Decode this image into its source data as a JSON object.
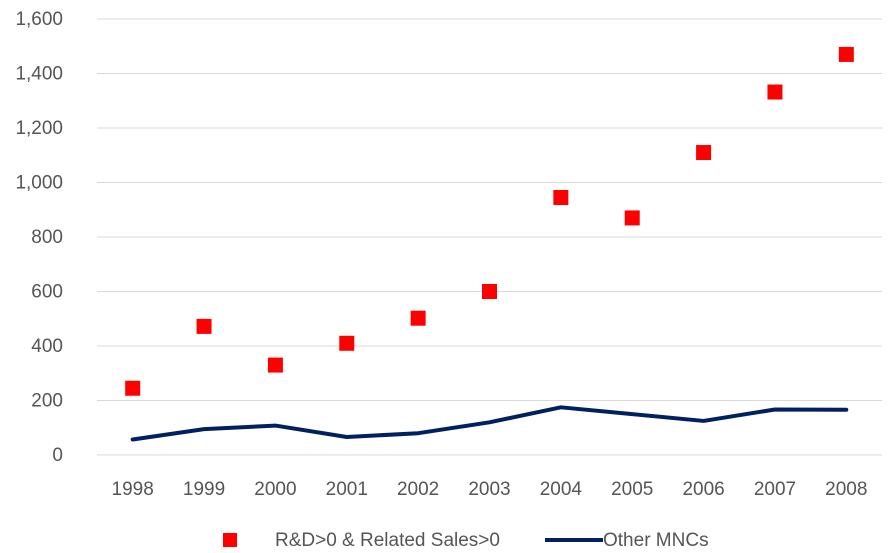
{
  "chart_data": {
    "type": "scatter",
    "title": "",
    "xlabel": "",
    "ylabel": "",
    "categories": [
      "1998",
      "1999",
      "2000",
      "2001",
      "2002",
      "2003",
      "2004",
      "2005",
      "2006",
      "2007",
      "2008"
    ],
    "ylim": [
      0,
      1600
    ],
    "yticks": [
      0,
      200,
      400,
      600,
      800,
      1000,
      1200,
      1400,
      1600
    ],
    "ytick_labels": [
      "0",
      "200",
      "400",
      "600",
      "800",
      "1,000",
      "1,200",
      "1,400",
      "1,600"
    ],
    "grid": true,
    "legend_position": "bottom",
    "series": [
      {
        "name": "R&D>0 & Related Sales>0",
        "type": "scatter",
        "marker": "square",
        "color": "#ff0000",
        "values": [
          245,
          472,
          330,
          410,
          502,
          600,
          945,
          870,
          1110,
          1332,
          1470
        ]
      },
      {
        "name": "Other MNCs",
        "type": "line",
        "color": "#002060",
        "values": [
          57,
          95,
          108,
          66,
          80,
          120,
          175,
          150,
          125,
          167,
          166
        ]
      }
    ]
  }
}
